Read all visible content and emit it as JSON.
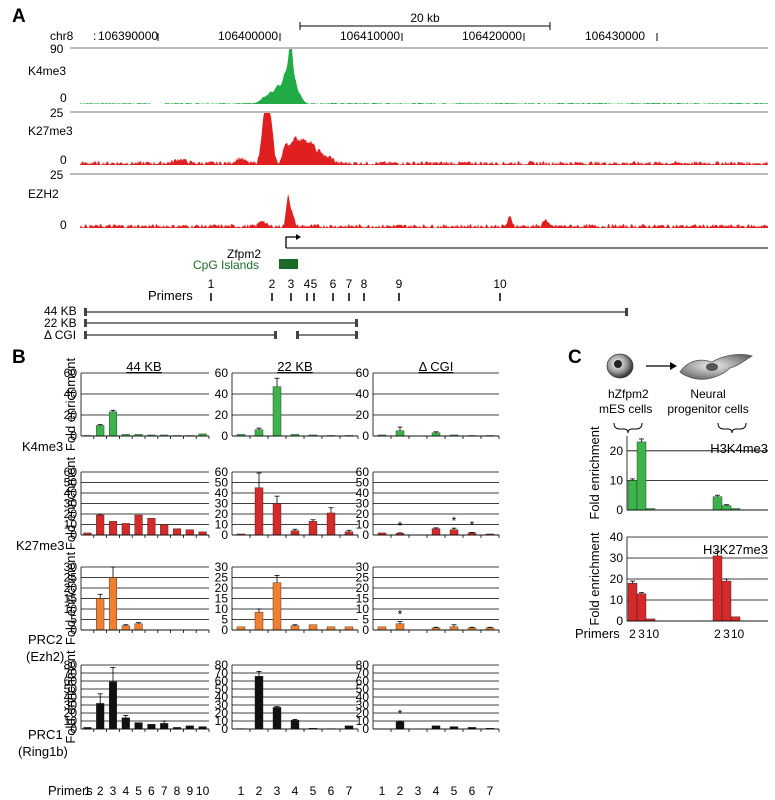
{
  "panels": {
    "a": "A",
    "b": "B",
    "c": "C"
  },
  "browser": {
    "chrom": "chr8",
    "scale_label": "20 kb",
    "coords": [
      106390000,
      106400000,
      106410000,
      106420000,
      106430000
    ],
    "coord_labels": [
      "106390000",
      "106400000",
      "106410000",
      "106420000",
      "106430000"
    ],
    "tracks": [
      {
        "name": "K4me3",
        "max": "90",
        "min": "0",
        "color": "#22aa44"
      },
      {
        "name": "K27me3",
        "max": "25",
        "min": "0",
        "color": "#e02020"
      },
      {
        "name": "EZH2",
        "max": "25",
        "min": "0",
        "color": "#e02020"
      }
    ],
    "gene_label": "Zfpm2",
    "cpg_label": "CpG Islands",
    "cpg_color": "#1a6b2a",
    "primers_title": "Primers",
    "primer_labels": [
      "1",
      "2",
      "3",
      "4",
      "5",
      "6",
      "7",
      "8",
      "9",
      "10"
    ],
    "constructs": [
      "44 KB",
      "22 KB",
      "Δ CGI"
    ]
  },
  "colors": {
    "K4me3": "#3cb44b",
    "K27me3": "#d42a2a",
    "PRC2": "#f08030",
    "PRC1": "#111111"
  },
  "panel_b": {
    "col_titles": [
      "44 KB",
      "22 KB",
      "Δ CGI"
    ],
    "row_labels": [
      [
        "K4me3"
      ],
      [
        "K27me3"
      ],
      [
        "PRC2",
        "(Ezh2)"
      ],
      [
        "PRC1",
        "(Ring1b)"
      ]
    ],
    "y_label": "Fold enrichment",
    "primers_label": "Primers",
    "x_44": [
      "1",
      "2",
      "3",
      "4",
      "5",
      "6",
      "7",
      "8",
      "9",
      "10"
    ],
    "x_7": [
      "1",
      "2",
      "3",
      "4",
      "5",
      "6",
      "7"
    ],
    "star": "*"
  },
  "panel_c": {
    "label_left": [
      "hZfpm2",
      "mES  cells"
    ],
    "label_right": [
      "Neural",
      "progenitor cells"
    ],
    "titles": [
      "H3K4me3",
      "H3K27me3"
    ],
    "y_label": "Fold enrichment",
    "primers_label": "Primers",
    "x_groups": [
      [
        "2",
        "3",
        "10"
      ],
      [
        "2",
        "3",
        "10"
      ]
    ]
  },
  "chart_data": [
    {
      "type": "bar",
      "title": "K4me3 / 44 KB",
      "categories": [
        "1",
        "2",
        "3",
        "4",
        "5",
        "6",
        "7",
        "8",
        "9",
        "10"
      ],
      "values": [
        0.5,
        10,
        23,
        1.5,
        1.5,
        1,
        1,
        0.5,
        0.5,
        2
      ],
      "errors": [
        0,
        0.8,
        1.5,
        0,
        0,
        0,
        0,
        0,
        0,
        0
      ],
      "ylim": [
        0,
        60
      ],
      "yticks": [
        0,
        20,
        40,
        60
      ]
    },
    {
      "type": "bar",
      "title": "K4me3 / 22 KB",
      "categories": [
        "1",
        "2",
        "3",
        "4",
        "5",
        "6",
        "7"
      ],
      "values": [
        1.5,
        6,
        47,
        1.5,
        1,
        0.5,
        0.5
      ],
      "errors": [
        0,
        1.5,
        8,
        0,
        0,
        0,
        0
      ],
      "ylim": [
        0,
        60
      ],
      "yticks": [
        0,
        20,
        40,
        60
      ]
    },
    {
      "type": "bar",
      "title": "K4me3 / Δ CGI",
      "categories": [
        "1",
        "2",
        "3",
        "4",
        "5",
        "6",
        "7"
      ],
      "values": [
        1,
        5,
        0,
        3,
        1,
        0.5,
        0.5
      ],
      "errors": [
        0,
        3.5,
        0,
        1,
        0,
        0,
        0
      ],
      "ylim": [
        0,
        60
      ],
      "yticks": [
        0,
        20,
        40,
        60
      ]
    },
    {
      "type": "bar",
      "title": "K27me3 / 44 KB",
      "categories": [
        "1",
        "2",
        "3",
        "4",
        "5",
        "6",
        "7",
        "8",
        "9",
        "10"
      ],
      "values": [
        2,
        19,
        13,
        11,
        19,
        16,
        10,
        6,
        5,
        3
      ],
      "errors": [
        0,
        0.8,
        0,
        0,
        0,
        0,
        0,
        0,
        0,
        0
      ],
      "ylim": [
        0,
        60
      ],
      "yticks": [
        0,
        10,
        20,
        30,
        40,
        50,
        60
      ]
    },
    {
      "type": "bar",
      "title": "K27me3 / 22 KB",
      "categories": [
        "1",
        "2",
        "3",
        "4",
        "5",
        "6",
        "7"
      ],
      "values": [
        1,
        45,
        30,
        4,
        13,
        21,
        3
      ],
      "errors": [
        0,
        14,
        7,
        1.5,
        1.5,
        5,
        1.5
      ],
      "ylim": [
        0,
        60
      ],
      "yticks": [
        0,
        10,
        20,
        30,
        40,
        50,
        60
      ]
    },
    {
      "type": "bar",
      "title": "K27me3 / Δ CGI",
      "categories": [
        "1",
        "2",
        "3",
        "4",
        "5",
        "6",
        "7"
      ],
      "values": [
        2,
        1.5,
        0,
        6,
        5,
        2,
        1
      ],
      "errors": [
        0,
        0.5,
        0,
        0.8,
        1.5,
        0.5,
        0
      ],
      "stars": [
        false,
        true,
        false,
        false,
        true,
        true,
        false
      ],
      "ylim": [
        0,
        60
      ],
      "yticks": [
        0,
        10,
        20,
        30,
        40,
        50,
        60
      ]
    },
    {
      "type": "bar",
      "title": "PRC2 (Ezh2) / 44 KB",
      "categories": [
        "1",
        "2",
        "3",
        "4",
        "5",
        "6",
        "7",
        "8",
        "9",
        "10"
      ],
      "values": [
        0,
        15,
        25,
        2,
        3,
        0,
        0,
        0,
        0,
        0
      ],
      "errors": [
        0,
        2,
        5,
        0.5,
        0.5,
        0,
        0,
        0,
        0,
        0
      ],
      "ylim": [
        0,
        30
      ],
      "yticks": [
        0,
        5,
        10,
        15,
        20,
        25,
        30
      ]
    },
    {
      "type": "bar",
      "title": "PRC2 (Ezh2) / 22 KB",
      "categories": [
        "1",
        "2",
        "3",
        "4",
        "5",
        "6",
        "7"
      ],
      "values": [
        1.5,
        8.5,
        22.5,
        2,
        2.5,
        1.5,
        1.5
      ],
      "errors": [
        0,
        1.5,
        3.5,
        0.5,
        0,
        0,
        0
      ],
      "ylim": [
        0,
        30
      ],
      "yticks": [
        0,
        5,
        10,
        15,
        20,
        25,
        30
      ]
    },
    {
      "type": "bar",
      "title": "PRC2 (Ezh2) / Δ CGI",
      "categories": [
        "1",
        "2",
        "3",
        "4",
        "5",
        "6",
        "7"
      ],
      "values": [
        1.5,
        3,
        0,
        1,
        1.5,
        1,
        1
      ],
      "errors": [
        0,
        1,
        0,
        0.3,
        1,
        0.3,
        0.3
      ],
      "stars": [
        false,
        true,
        false,
        false,
        false,
        false,
        false
      ],
      "ylim": [
        0,
        30
      ],
      "yticks": [
        0,
        5,
        10,
        15,
        20,
        25,
        30
      ]
    },
    {
      "type": "bar",
      "title": "PRC1 (Ring1b) / 44 KB",
      "categories": [
        "1",
        "2",
        "3",
        "4",
        "5",
        "6",
        "7",
        "8",
        "9",
        "10"
      ],
      "values": [
        2,
        32,
        59,
        14,
        8,
        6,
        7,
        2,
        4,
        3
      ],
      "errors": [
        0,
        12,
        18,
        3,
        0,
        0,
        3,
        0,
        0,
        0
      ],
      "ylim": [
        0,
        80
      ],
      "yticks": [
        0,
        10,
        20,
        30,
        40,
        50,
        60,
        70,
        80
      ]
    },
    {
      "type": "bar",
      "title": "PRC1 (Ring1b) / 22 KB",
      "categories": [
        "1",
        "2",
        "3",
        "4",
        "5",
        "6",
        "7"
      ],
      "values": [
        0.5,
        66,
        27,
        11,
        1,
        0.5,
        4
      ],
      "errors": [
        0,
        6,
        1,
        1,
        0,
        0,
        0
      ],
      "ylim": [
        0,
        80
      ],
      "yticks": [
        0,
        10,
        20,
        30,
        40,
        50,
        60,
        70,
        80
      ]
    },
    {
      "type": "bar",
      "title": "PRC1 (Ring1b) / Δ CGI",
      "categories": [
        "1",
        "2",
        "3",
        "4",
        "5",
        "6",
        "7"
      ],
      "values": [
        0,
        9,
        0,
        4,
        3,
        2,
        1
      ],
      "errors": [
        0,
        1,
        0,
        0,
        0,
        0,
        0
      ],
      "stars": [
        false,
        true,
        false,
        false,
        false,
        false,
        false
      ],
      "ylim": [
        0,
        80
      ],
      "yticks": [
        0,
        10,
        20,
        30,
        40,
        50,
        60,
        70,
        80
      ]
    },
    {
      "type": "bar",
      "title": "H3K4me3",
      "groups": [
        "hZfpm2 mES cells",
        "Neural progenitor cells"
      ],
      "categories": [
        "2",
        "3",
        "10"
      ],
      "series": [
        {
          "values": [
            10,
            23,
            0.5
          ]
        },
        {
          "values": [
            4.5,
            1.5,
            0.5
          ]
        }
      ],
      "errors": [
        [
          0.5,
          1,
          0
        ],
        [
          0.5,
          0.3,
          0
        ]
      ],
      "ylim": [
        0,
        25
      ],
      "yticks": [
        0,
        10,
        20
      ]
    },
    {
      "type": "bar",
      "title": "H3K27me3",
      "groups": [
        "hZfpm2 mES cells",
        "Neural progenitor cells"
      ],
      "categories": [
        "2",
        "3",
        "10"
      ],
      "series": [
        {
          "values": [
            18,
            13,
            1
          ]
        },
        {
          "values": [
            31,
            19,
            2
          ]
        }
      ],
      "errors": [
        [
          1,
          0.5,
          0
        ],
        [
          2,
          1,
          0
        ]
      ],
      "ylim": [
        0,
        40
      ],
      "yticks": [
        0,
        10,
        20,
        30,
        40
      ]
    }
  ]
}
